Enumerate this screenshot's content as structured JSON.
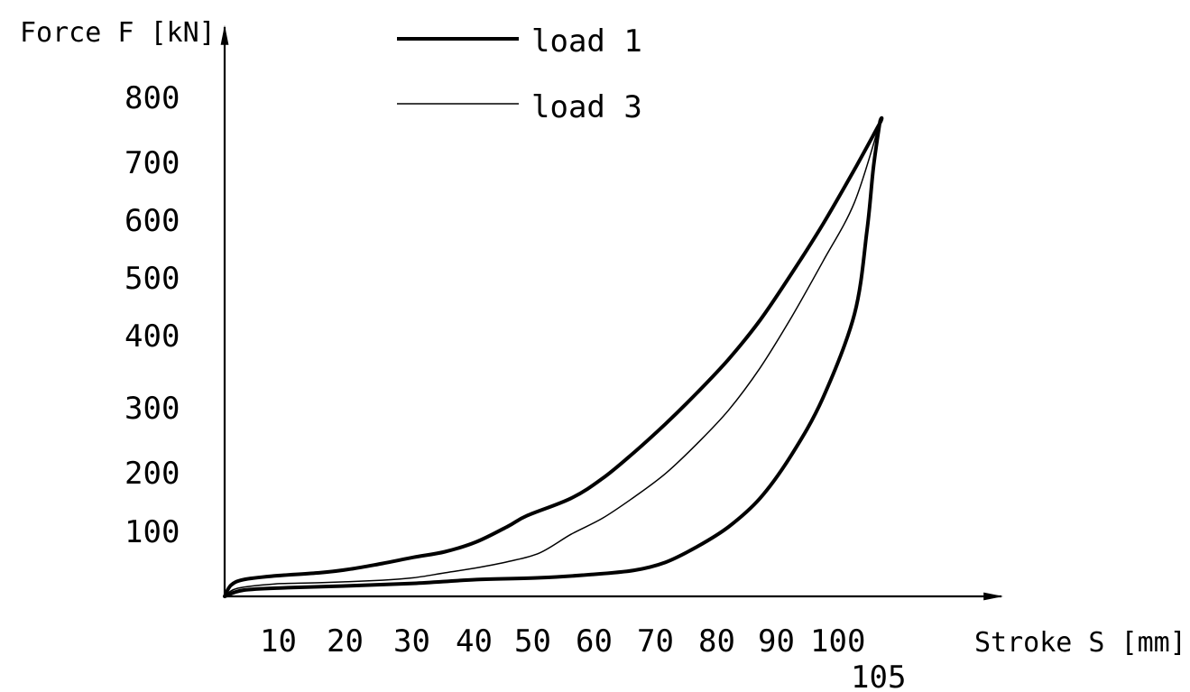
{
  "chart_data": {
    "type": "line",
    "title": "",
    "ylabel": "Force F [kN]",
    "xlabel": "Stroke S [mm]",
    "xlim": [
      0,
      105
    ],
    "ylim": [
      0,
      800
    ],
    "grid": false,
    "legend_position": "top-center",
    "x_ticks": [
      "10",
      "20",
      "30",
      "40",
      "50",
      "60",
      "70",
      "80",
      "90",
      "100",
      "105"
    ],
    "y_ticks": [
      "100",
      "200",
      "300",
      "400",
      "500",
      "600",
      "700",
      "800"
    ],
    "series": [
      {
        "name": "load 1",
        "color": "#000000",
        "points": [
          [
            0,
            0
          ],
          [
            1,
            18
          ],
          [
            3,
            27
          ],
          [
            8,
            33
          ],
          [
            15,
            38
          ],
          [
            20,
            44
          ],
          [
            25,
            53
          ],
          [
            30,
            63
          ],
          [
            35,
            72
          ],
          [
            40,
            88
          ],
          [
            45,
            113
          ],
          [
            48,
            130
          ],
          [
            55,
            158
          ],
          [
            60,
            190
          ],
          [
            65,
            232
          ],
          [
            70,
            278
          ],
          [
            75,
            328
          ],
          [
            80,
            382
          ],
          [
            85,
            445
          ],
          [
            90,
            520
          ],
          [
            95,
            600
          ],
          [
            100,
            688
          ],
          [
            104,
            762
          ],
          [
            104,
            762
          ],
          [
            103,
            690
          ],
          [
            102,
            590
          ],
          [
            100,
            455
          ],
          [
            95,
            320
          ],
          [
            90,
            228
          ],
          [
            85,
            158
          ],
          [
            80,
            112
          ],
          [
            75,
            80
          ],
          [
            70,
            55
          ],
          [
            65,
            42
          ],
          [
            58,
            35
          ],
          [
            50,
            30
          ],
          [
            40,
            27
          ],
          [
            30,
            21
          ],
          [
            20,
            17
          ],
          [
            10,
            14
          ],
          [
            3,
            10
          ],
          [
            0,
            0
          ]
        ]
      },
      {
        "name": "load 3",
        "color": "#000000",
        "points": [
          [
            0,
            0
          ],
          [
            2,
            13
          ],
          [
            8,
            20
          ],
          [
            15,
            22
          ],
          [
            25,
            26
          ],
          [
            30,
            30
          ],
          [
            35,
            38
          ],
          [
            40,
            46
          ],
          [
            45,
            56
          ],
          [
            50,
            70
          ],
          [
            55,
            100
          ],
          [
            60,
            126
          ],
          [
            65,
            160
          ],
          [
            70,
            198
          ],
          [
            75,
            246
          ],
          [
            80,
            300
          ],
          [
            85,
            368
          ],
          [
            90,
            450
          ],
          [
            95,
            540
          ],
          [
            100,
            635
          ],
          [
            104,
            762
          ]
        ]
      }
    ]
  }
}
